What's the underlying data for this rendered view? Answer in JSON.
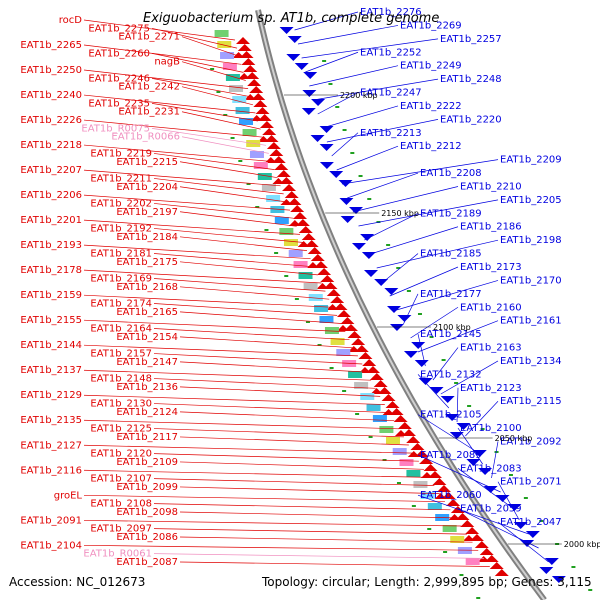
{
  "map": {
    "title": "Exiguobacterium sp. AT1b, complete genome",
    "accession": "Accession: NC_012673",
    "topology": "Topology: circular; Length: 2,999,895 bp; Genes: 3,115",
    "colors": {
      "forward": "#e00000",
      "reverse": "#0000e0",
      "rna": "#f090c0",
      "backbone": "#808080"
    }
  },
  "kbp_ticks": [
    "2200 kbp",
    "2150 kbp",
    "2100 kbp",
    "2050 kbp",
    "2000 kbp"
  ],
  "left_labels": [
    {
      "text": "rocD",
      "type": "forward"
    },
    {
      "text": "EAT1b_2275",
      "type": "forward"
    },
    {
      "text": "EAT1b_2271",
      "type": "forward"
    },
    {
      "text": "EAT1b_2265",
      "type": "forward"
    },
    {
      "text": "EAT1b_2260",
      "type": "forward"
    },
    {
      "text": "nagB",
      "type": "forward"
    },
    {
      "text": "EAT1b_2250",
      "type": "forward"
    },
    {
      "text": "EAT1b_2246",
      "type": "forward"
    },
    {
      "text": "EAT1b_2242",
      "type": "forward"
    },
    {
      "text": "EAT1b_2240",
      "type": "forward"
    },
    {
      "text": "EAT1b_2235",
      "type": "forward"
    },
    {
      "text": "EAT1b_2231",
      "type": "forward"
    },
    {
      "text": "EAT1b_2226",
      "type": "forward"
    },
    {
      "text": "EAT1b_R0075",
      "type": "rna"
    },
    {
      "text": "EAT1b_R0066",
      "type": "rna"
    },
    {
      "text": "EAT1b_2218",
      "type": "forward"
    },
    {
      "text": "EAT1b_2219",
      "type": "forward"
    },
    {
      "text": "EAT1b_2215",
      "type": "forward"
    },
    {
      "text": "EAT1b_2207",
      "type": "forward"
    },
    {
      "text": "EAT1b_2211",
      "type": "forward"
    },
    {
      "text": "EAT1b_2204",
      "type": "forward"
    },
    {
      "text": "EAT1b_2206",
      "type": "forward"
    },
    {
      "text": "EAT1b_2202",
      "type": "forward"
    },
    {
      "text": "EAT1b_2197",
      "type": "forward"
    },
    {
      "text": "EAT1b_2201",
      "type": "forward"
    },
    {
      "text": "EAT1b_2192",
      "type": "forward"
    },
    {
      "text": "EAT1b_2184",
      "type": "forward"
    },
    {
      "text": "EAT1b_2193",
      "type": "forward"
    },
    {
      "text": "EAT1b_2181",
      "type": "forward"
    },
    {
      "text": "EAT1b_2175",
      "type": "forward"
    },
    {
      "text": "EAT1b_2178",
      "type": "forward"
    },
    {
      "text": "EAT1b_2169",
      "type": "forward"
    },
    {
      "text": "EAT1b_2168",
      "type": "forward"
    },
    {
      "text": "EAT1b_2159",
      "type": "forward"
    },
    {
      "text": "EAT1b_2174",
      "type": "forward"
    },
    {
      "text": "EAT1b_2165",
      "type": "forward"
    },
    {
      "text": "EAT1b_2155",
      "type": "forward"
    },
    {
      "text": "EAT1b_2164",
      "type": "forward"
    },
    {
      "text": "EAT1b_2154",
      "type": "forward"
    },
    {
      "text": "EAT1b_2144",
      "type": "forward"
    },
    {
      "text": "EAT1b_2157",
      "type": "forward"
    },
    {
      "text": "EAT1b_2147",
      "type": "forward"
    },
    {
      "text": "EAT1b_2137",
      "type": "forward"
    },
    {
      "text": "EAT1b_2148",
      "type": "forward"
    },
    {
      "text": "EAT1b_2136",
      "type": "forward"
    },
    {
      "text": "EAT1b_2129",
      "type": "forward"
    },
    {
      "text": "EAT1b_2130",
      "type": "forward"
    },
    {
      "text": "EAT1b_2124",
      "type": "forward"
    },
    {
      "text": "EAT1b_2135",
      "type": "forward"
    },
    {
      "text": "EAT1b_2125",
      "type": "forward"
    },
    {
      "text": "EAT1b_2117",
      "type": "forward"
    },
    {
      "text": "EAT1b_2127",
      "type": "forward"
    },
    {
      "text": "EAT1b_2120",
      "type": "forward"
    },
    {
      "text": "EAT1b_2109",
      "type": "forward"
    },
    {
      "text": "EAT1b_2116",
      "type": "forward"
    },
    {
      "text": "EAT1b_2107",
      "type": "forward"
    },
    {
      "text": "EAT1b_2099",
      "type": "forward"
    },
    {
      "text": "groEL",
      "type": "forward"
    },
    {
      "text": "EAT1b_2108",
      "type": "forward"
    },
    {
      "text": "EAT1b_2098",
      "type": "forward"
    },
    {
      "text": "EAT1b_2091",
      "type": "forward"
    },
    {
      "text": "EAT1b_2097",
      "type": "forward"
    },
    {
      "text": "EAT1b_2086",
      "type": "forward"
    },
    {
      "text": "EAT1b_2104",
      "type": "forward"
    },
    {
      "text": "EAT1b_R0061",
      "type": "rna"
    },
    {
      "text": "EAT1b_2087",
      "type": "forward"
    }
  ],
  "right_labels": [
    {
      "text": "EAT1b_2276"
    },
    {
      "text": "EAT1b_2269"
    },
    {
      "text": "EAT1b_2257"
    },
    {
      "text": "EAT1b_2252"
    },
    {
      "text": "EAT1b_2249"
    },
    {
      "text": "EAT1b_2248"
    },
    {
      "text": "EAT1b_2247"
    },
    {
      "text": "EAT1b_2222"
    },
    {
      "text": "EAT1b_2220"
    },
    {
      "text": "EAT1b_2213"
    },
    {
      "text": "EAT1b_2212"
    },
    {
      "text": "EAT1b_2209"
    },
    {
      "text": "EAT1b_2208"
    },
    {
      "text": "EAT1b_2210"
    },
    {
      "text": "EAT1b_2205"
    },
    {
      "text": "EAT1b_2189"
    },
    {
      "text": "EAT1b_2186"
    },
    {
      "text": "EAT1b_2198"
    },
    {
      "text": "EAT1b_2185"
    },
    {
      "text": "EAT1b_2173"
    },
    {
      "text": "EAT1b_2170"
    },
    {
      "text": "EAT1b_2177"
    },
    {
      "text": "EAT1b_2160"
    },
    {
      "text": "EAT1b_2161"
    },
    {
      "text": "EAT1b_2145"
    },
    {
      "text": "EAT1b_2163"
    },
    {
      "text": "EAT1b_2134"
    },
    {
      "text": "EAT1b_2132"
    },
    {
      "text": "EAT1b_2123"
    },
    {
      "text": "EAT1b_2115"
    },
    {
      "text": "EAT1b_2105"
    },
    {
      "text": "EAT1b_2100"
    },
    {
      "text": "EAT1b_2092"
    },
    {
      "text": "EAT1b_2089"
    },
    {
      "text": "EAT1b_2083"
    },
    {
      "text": "EAT1b_2071"
    },
    {
      "text": "EAT1b_2060"
    },
    {
      "text": "EAT1b_2059"
    },
    {
      "text": "EAT1b_2047"
    }
  ]
}
